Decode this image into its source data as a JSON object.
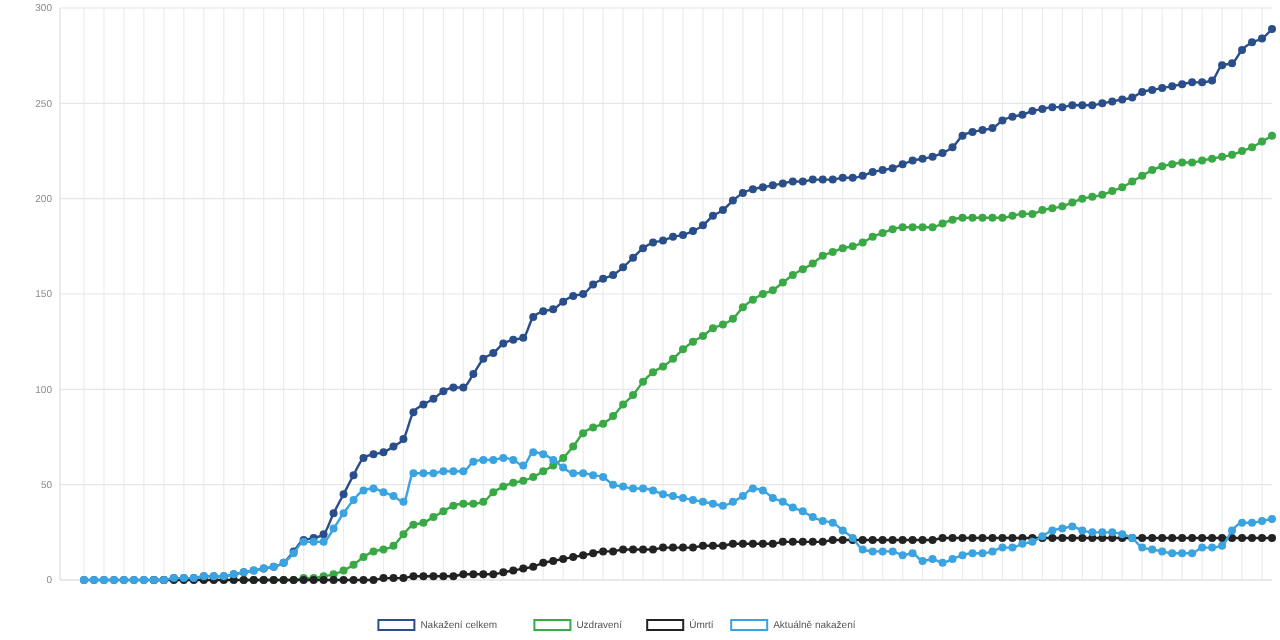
{
  "chart_data": {
    "type": "line",
    "categories": [
      null,
      null,
      null,
      null,
      null,
      null,
      null,
      null,
      null,
      null,
      null,
      null,
      null,
      null,
      null,
      null,
      null,
      null,
      null,
      null,
      null,
      null,
      null,
      null,
      null,
      null,
      null,
      null,
      null,
      null,
      null,
      null,
      null,
      null,
      null,
      null,
      null,
      null,
      null,
      null,
      null,
      null,
      null,
      null,
      null,
      null,
      null,
      null,
      null,
      null,
      null,
      null,
      null,
      null,
      null,
      null,
      null,
      null,
      null,
      null,
      null,
      null,
      null,
      null,
      null,
      null,
      null,
      null,
      null,
      null,
      null,
      null,
      null,
      null,
      null,
      null,
      null,
      null,
      null,
      null,
      null,
      null,
      null,
      null,
      null,
      null,
      null,
      null,
      null,
      null,
      null,
      null,
      null,
      null,
      null,
      null,
      null,
      null,
      null,
      null,
      null,
      null,
      null,
      null,
      null,
      null,
      null,
      null,
      null,
      null,
      null,
      null,
      null,
      null,
      null,
      null,
      null,
      null,
      null,
      null
    ],
    "series": [
      {
        "name": "Nakažení celkem",
        "color": "#2a4e8a",
        "values": [
          0,
          0,
          0,
          0,
          0,
          0,
          0,
          0,
          0,
          1,
          1,
          1,
          2,
          2,
          2,
          3,
          4,
          5,
          6,
          7,
          9,
          15,
          21,
          22,
          24,
          35,
          45,
          55,
          64,
          66,
          67,
          70,
          74,
          88,
          92,
          95,
          99,
          101,
          101,
          108,
          116,
          119,
          124,
          126,
          127,
          138,
          141,
          142,
          146,
          149,
          150,
          155,
          158,
          160,
          164,
          169,
          174,
          177,
          178,
          180,
          181,
          183,
          186,
          191,
          194,
          199,
          203,
          205,
          206,
          207,
          208,
          209,
          209,
          210,
          210,
          210,
          211,
          211,
          212,
          214,
          215,
          216,
          218,
          220,
          221,
          222,
          224,
          227,
          233,
          235,
          236,
          237,
          241,
          243,
          244,
          246,
          247,
          248,
          248,
          249,
          249,
          249,
          250,
          251,
          252,
          253,
          256,
          257,
          258,
          259,
          260,
          261,
          261,
          262,
          270,
          271,
          278,
          282,
          284,
          289
        ]
      },
      {
        "name": "Uzdravení",
        "color": "#3aa845",
        "values": [
          null,
          null,
          null,
          null,
          null,
          null,
          null,
          null,
          null,
          null,
          null,
          null,
          null,
          null,
          null,
          null,
          0,
          0,
          0,
          0,
          0,
          0,
          1,
          1,
          2,
          3,
          5,
          8,
          12,
          15,
          16,
          18,
          24,
          29,
          30,
          33,
          36,
          39,
          40,
          40,
          41,
          46,
          49,
          51,
          52,
          54,
          57,
          60,
          64,
          70,
          77,
          80,
          82,
          86,
          92,
          97,
          104,
          109,
          112,
          116,
          121,
          125,
          128,
          132,
          134,
          137,
          143,
          147,
          150,
          152,
          156,
          160,
          163,
          166,
          170,
          172,
          174,
          175,
          177,
          180,
          182,
          184,
          185,
          185,
          185,
          185,
          187,
          189,
          190,
          190,
          190,
          190,
          190,
          191,
          192,
          192,
          194,
          195,
          196,
          198,
          200,
          201,
          202,
          204,
          206,
          209,
          212,
          215,
          217,
          218,
          219,
          219,
          220,
          221,
          222,
          223,
          225,
          227,
          230,
          233
        ]
      },
      {
        "name": "Úmrtí",
        "color": "#222222",
        "values": [
          null,
          null,
          null,
          null,
          null,
          null,
          null,
          0,
          0,
          0,
          0,
          0,
          0,
          0,
          0,
          0,
          0,
          0,
          0,
          0,
          0,
          0,
          0,
          0,
          0,
          0,
          0,
          0,
          0,
          0,
          1,
          1,
          1,
          2,
          2,
          2,
          2,
          2,
          3,
          3,
          3,
          3,
          4,
          5,
          6,
          7,
          9,
          10,
          11,
          12,
          13,
          14,
          15,
          15,
          16,
          16,
          16,
          16,
          17,
          17,
          17,
          17,
          18,
          18,
          18,
          19,
          19,
          19,
          19,
          19,
          20,
          20,
          20,
          20,
          20,
          21,
          21,
          21,
          21,
          21,
          21,
          21,
          21,
          21,
          21,
          21,
          22,
          22,
          22,
          22,
          22,
          22,
          22,
          22,
          22,
          22,
          22,
          22,
          22,
          22,
          22,
          22,
          22,
          22,
          22,
          22,
          22,
          22,
          22,
          22,
          22,
          22,
          22,
          22,
          22,
          22,
          22,
          22,
          22,
          22
        ]
      },
      {
        "name": "Aktuálně nakažení",
        "color": "#3ba3e0",
        "values": [
          0,
          0,
          0,
          0,
          0,
          0,
          0,
          0,
          0,
          1,
          1,
          1,
          2,
          2,
          2,
          3,
          4,
          5,
          6,
          7,
          9,
          14,
          20,
          20,
          20,
          27,
          35,
          42,
          47,
          48,
          46,
          44,
          41,
          56,
          56,
          56,
          57,
          57,
          57,
          62,
          63,
          63,
          64,
          63,
          60,
          67,
          66,
          63,
          59,
          56,
          56,
          55,
          54,
          50,
          49,
          48,
          48,
          47,
          45,
          44,
          43,
          42,
          41,
          40,
          39,
          41,
          44,
          48,
          47,
          43,
          41,
          38,
          36,
          33,
          31,
          30,
          26,
          22,
          16,
          15,
          15,
          15,
          13,
          14,
          10,
          11,
          9,
          11,
          13,
          14,
          14,
          15,
          17,
          17,
          19,
          20,
          23,
          26,
          27,
          28,
          26,
          25,
          25,
          25,
          24,
          22,
          17,
          16,
          15,
          14,
          14,
          14,
          17,
          17,
          18,
          26,
          30,
          30,
          31,
          32
        ]
      }
    ],
    "ylim": [
      0,
      300
    ],
    "yticks": [
      0,
      50,
      100,
      150,
      200,
      250,
      300
    ],
    "grid": true,
    "legend": "bottom",
    "marker": "circle",
    "line_style": "solid"
  }
}
